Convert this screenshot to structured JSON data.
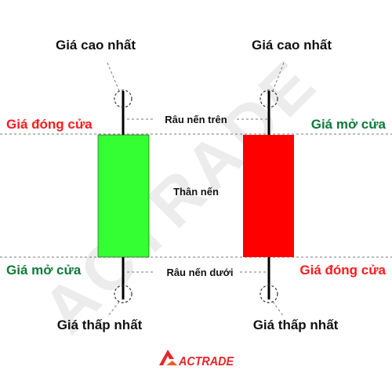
{
  "watermark": "ACTRADE",
  "colors": {
    "bullish_body": "#33ff33",
    "bearish_body": "#ff0000",
    "label_green": "#0e7a3a",
    "label_red": "#ff1a1a",
    "brand_red": "#e8262b"
  },
  "left_candle": {
    "type": "bullish",
    "high_label": "Giá cao nhất",
    "top_label": "Giá đóng cửa",
    "bottom_label": "Giá mở cửa",
    "low_label": "Giá thấp nhất"
  },
  "right_candle": {
    "type": "bearish",
    "high_label": "Giá cao nhất",
    "top_label": "Giá mở cửa",
    "bottom_label": "Giá đóng cửa",
    "low_label": "Giá thấp nhất"
  },
  "center": {
    "upper_wick_label": "Râu nến trên",
    "body_label": "Thân nến",
    "lower_wick_label": "Râu nến dưới"
  },
  "logo": {
    "text": "ACTRADE",
    "icon": "actrade-logo-icon"
  }
}
